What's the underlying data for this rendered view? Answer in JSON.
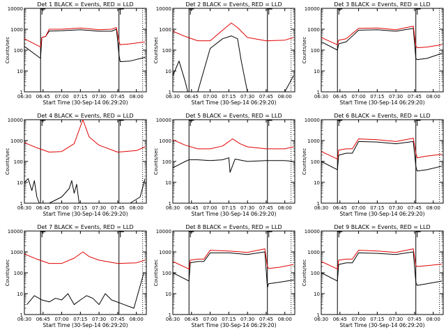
{
  "chart_data": {
    "type": "line",
    "colors": {
      "events": "#000000",
      "lld": "#e00000"
    },
    "y_scale": "log",
    "ylim": [
      1,
      10000
    ],
    "y_ticks": [
      1,
      10,
      100,
      1000,
      10000
    ],
    "y_tick_labels": [
      "1",
      "10",
      "100",
      "1000",
      "10000"
    ],
    "x_range": [
      "06:30",
      "08:08"
    ],
    "x_tick_minutes": [
      390,
      405,
      420,
      435,
      450,
      465,
      480
    ],
    "x_tick_labels": [
      "06:30",
      "06:45",
      "07:00",
      "07:15",
      "07:30",
      "07:45",
      "08:00"
    ],
    "ylabel": "Counts/sec",
    "panels": [
      {
        "title": "Det 1  BLACK = Events, RED = LLD",
        "xlabel": "Start Time (30-Sep-14 06:29:20)",
        "vlines_solid": [
          "06:43",
          "07:46"
        ],
        "vlines_dotted": [
          "08:05"
        ],
        "series": [
          {
            "key": "events",
            "x": [
              "06:30",
              "06:43",
              "06:44",
              "06:47",
              "06:50",
              "07:00",
              "07:15",
              "07:30",
              "07:40",
              "07:44",
              "07:46",
              "07:47",
              "07:55",
              "08:07"
            ],
            "y": [
              150,
              40,
              400,
              450,
              820,
              850,
              950,
              800,
              800,
              1000,
              60,
              28,
              30,
              45
            ]
          },
          {
            "key": "lld",
            "x": [
              "06:30",
              "06:43",
              "06:44",
              "06:47",
              "06:50",
              "07:00",
              "07:15",
              "07:30",
              "07:40",
              "07:44",
              "07:46",
              "07:47",
              "07:55",
              "08:07"
            ],
            "y": [
              350,
              140,
              400,
              450,
              1000,
              1000,
              1150,
              950,
              1000,
              1200,
              260,
              180,
              200,
              250
            ]
          }
        ]
      },
      {
        "title": "Det 2  BLACK = Events, RED = LLD",
        "xlabel": "Start Time (30-Sep-14 06:29:20)",
        "vlines_solid": [
          "06:43",
          "07:46"
        ],
        "vlines_dotted": [
          "08:05"
        ],
        "series": [
          {
            "key": "events",
            "x": [
              "06:30",
              "06:35",
              "06:40",
              "06:42",
              "06:50",
              "07:00",
              "07:10",
              "07:17",
              "07:22",
              "07:25",
              "07:30",
              "07:45",
              "07:52",
              "08:00",
              "08:07"
            ],
            "y": [
              6,
              30,
              3,
              1,
              1,
              120,
              350,
              480,
              350,
              30,
              1,
              1,
              1,
              1,
              6
            ]
          },
          {
            "key": "lld",
            "x": [
              "06:30",
              "06:40",
              "06:50",
              "07:00",
              "07:10",
              "07:17",
              "07:22",
              "07:30",
              "07:45",
              "08:00",
              "08:07"
            ],
            "y": [
              800,
              450,
              280,
              280,
              900,
              2000,
              1200,
              400,
              280,
              300,
              400
            ]
          }
        ]
      },
      {
        "title": "Det 3  BLACK = Events, RED = LLD",
        "xlabel": "Start Time (30-Sep-14 06:29:20)",
        "vlines_solid": [
          "06:43",
          "07:46"
        ],
        "vlines_dotted": [
          "08:05"
        ],
        "series": [
          {
            "key": "events",
            "x": [
              "06:30",
              "06:43",
              "06:44",
              "06:50",
              "07:00",
              "07:15",
              "07:30",
              "07:44",
              "07:46",
              "07:47",
              "07:55",
              "08:07"
            ],
            "y": [
              250,
              100,
              200,
              250,
              900,
              950,
              800,
              1100,
              40,
              35,
              40,
              70
            ]
          },
          {
            "key": "lld",
            "x": [
              "06:30",
              "06:43",
              "06:44",
              "06:50",
              "07:00",
              "07:15",
              "07:30",
              "07:44",
              "07:46",
              "07:47",
              "07:55",
              "08:07"
            ],
            "y": [
              400,
              180,
              300,
              350,
              1100,
              1150,
              950,
              1400,
              160,
              130,
              140,
              180
            ]
          }
        ]
      },
      {
        "title": "Det 4  BLACK = Events, RED = LLD",
        "xlabel": "Start Time (30-Sep-14 06:29:20)",
        "vlines_solid": [
          "06:43",
          "07:46"
        ],
        "vlines_dotted": [
          "08:05"
        ],
        "series": [
          {
            "key": "events",
            "x": [
              "06:30",
              "06:33",
              "06:36",
              "06:38",
              "06:40",
              "06:42",
              "06:50",
              "07:00",
              "07:06",
              "07:08",
              "07:10",
              "07:12",
              "07:14",
              "07:18",
              "07:30",
              "07:45",
              "07:55",
              "08:03",
              "08:07"
            ],
            "y": [
              10,
              15,
              4,
              12,
              2,
              1,
              1,
              2,
              5,
              12,
              3,
              8,
              1,
              1,
              1,
              1,
              1,
              2,
              15
            ]
          },
          {
            "key": "lld",
            "x": [
              "06:30",
              "06:40",
              "06:50",
              "07:00",
              "07:10",
              "07:17",
              "07:22",
              "07:30",
              "07:45",
              "08:00",
              "08:07"
            ],
            "y": [
              800,
              450,
              280,
              300,
              700,
              10000,
              1500,
              600,
              280,
              330,
              500
            ]
          }
        ]
      },
      {
        "title": "Det 5  BLACK = Events, RED = LLD",
        "xlabel": "Start Time (30-Sep-14 06:29:20)",
        "vlines_solid": [
          "06:43",
          "07:46"
        ],
        "vlines_dotted": [
          "08:05"
        ],
        "series": [
          {
            "key": "events",
            "x": [
              "06:30",
              "06:35",
              "06:40",
              "06:43",
              "06:50",
              "07:00",
              "07:10",
              "07:15",
              "07:16",
              "07:20",
              "07:30",
              "07:45",
              "08:00",
              "08:07"
            ],
            "y": [
              50,
              70,
              100,
              120,
              120,
              110,
              120,
              150,
              30,
              130,
              100,
              110,
              110,
              100
            ]
          },
          {
            "key": "lld",
            "x": [
              "06:30",
              "06:40",
              "06:50",
              "07:00",
              "07:10",
              "07:18",
              "07:24",
              "07:30",
              "07:45",
              "08:00",
              "08:07"
            ],
            "y": [
              1100,
              600,
              400,
              400,
              550,
              1200,
              700,
              500,
              400,
              400,
              500
            ]
          }
        ]
      },
      {
        "title": "Det 6  BLACK = Events, RED = LLD",
        "xlabel": "Start Time (30-Sep-14 06:29:20)",
        "vlines_solid": [
          "06:43",
          "07:46"
        ],
        "vlines_dotted": [
          "08:05"
        ],
        "series": [
          {
            "key": "events",
            "x": [
              "06:30",
              "06:43",
              "06:44",
              "06:50",
              "06:55",
              "07:00",
              "07:15",
              "07:30",
              "07:44",
              "07:46",
              "07:47",
              "07:55",
              "08:07"
            ],
            "y": [
              100,
              40,
              200,
              250,
              250,
              900,
              850,
              700,
              900,
              60,
              35,
              40,
              60
            ]
          },
          {
            "key": "lld",
            "x": [
              "06:30",
              "06:43",
              "06:44",
              "06:50",
              "06:55",
              "07:00",
              "07:15",
              "07:30",
              "07:44",
              "07:46",
              "07:47",
              "07:55",
              "08:07"
            ],
            "y": [
              300,
              130,
              350,
              400,
              400,
              1200,
              1100,
              900,
              1300,
              250,
              150,
              180,
              220
            ]
          }
        ]
      },
      {
        "title": "Det 7  BLACK = Events, RED = LLD",
        "xlabel": "Start Time (30-Sep-14 06:29:20)",
        "vlines_solid": [
          "06:43",
          "07:46"
        ],
        "vlines_dotted": [
          "08:05"
        ],
        "series": [
          {
            "key": "events",
            "x": [
              "06:32",
              "06:38",
              "06:44",
              "06:50",
              "06:55",
              "07:00",
              "07:05",
              "07:10",
              "07:15",
              "07:20",
              "07:25",
              "07:30",
              "07:35",
              "07:40",
              "07:50",
              "07:58",
              "08:06"
            ],
            "y": [
              3,
              8,
              5,
              4,
              6,
              5,
              10,
              3,
              5,
              8,
              6,
              3,
              10,
              5,
              3,
              2,
              100
            ]
          },
          {
            "key": "lld",
            "x": [
              "06:30",
              "06:40",
              "06:50",
              "07:00",
              "07:10",
              "07:17",
              "07:22",
              "07:30",
              "07:45",
              "08:00",
              "08:07"
            ],
            "y": [
              800,
              450,
              280,
              280,
              500,
              1000,
              600,
              400,
              280,
              300,
              400
            ]
          }
        ]
      },
      {
        "title": "Det 8  BLACK = Events, RED = LLD",
        "xlabel": "Start Time (30-Sep-14 06:29:20)",
        "vlines_solid": [
          "06:43",
          "07:46"
        ],
        "vlines_dotted": [
          "08:05"
        ],
        "series": [
          {
            "key": "events",
            "x": [
              "06:30",
              "06:43",
              "06:44",
              "06:50",
              "06:55",
              "07:00",
              "07:15",
              "07:30",
              "07:44",
              "07:46",
              "07:47",
              "07:55",
              "08:07"
            ],
            "y": [
              100,
              40,
              300,
              350,
              350,
              900,
              900,
              750,
              1000,
              20,
              30,
              35,
              45
            ]
          },
          {
            "key": "lld",
            "x": [
              "06:30",
              "06:43",
              "06:44",
              "06:50",
              "06:55",
              "07:00",
              "07:15",
              "07:30",
              "07:44",
              "07:46",
              "07:47",
              "07:55",
              "08:07"
            ],
            "y": [
              350,
              150,
              400,
              450,
              450,
              1200,
              1100,
              950,
              1400,
              200,
              160,
              180,
              250
            ]
          }
        ]
      },
      {
        "title": "Det 9  BLACK = Events, RED = LLD",
        "xlabel": "Start Time (30-Sep-14 06:29:20)",
        "vlines_solid": [
          "06:43",
          "07:46"
        ],
        "vlines_dotted": [
          "08:05"
        ],
        "series": [
          {
            "key": "events",
            "x": [
              "06:30",
              "06:43",
              "06:44",
              "06:50",
              "06:55",
              "07:00",
              "07:15",
              "07:30",
              "07:44",
              "07:46",
              "07:47",
              "07:55",
              "08:07"
            ],
            "y": [
              100,
              40,
              250,
              300,
              300,
              900,
              850,
              750,
              1000,
              35,
              25,
              30,
              40
            ]
          },
          {
            "key": "lld",
            "x": [
              "06:30",
              "06:43",
              "06:44",
              "06:50",
              "06:55",
              "07:00",
              "07:15",
              "07:30",
              "07:44",
              "07:46",
              "07:47",
              "07:55",
              "08:07"
            ],
            "y": [
              350,
              150,
              400,
              450,
              450,
              1200,
              1100,
              950,
              1400,
              220,
              200,
              220,
              260
            ]
          }
        ]
      }
    ]
  }
}
